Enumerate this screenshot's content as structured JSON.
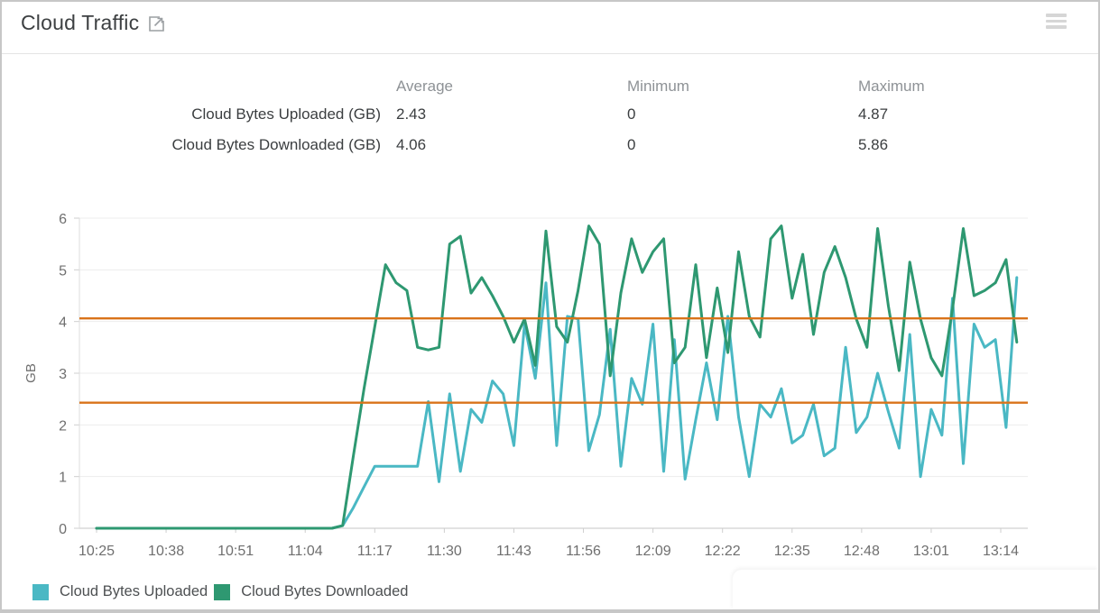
{
  "card": {
    "title": "Cloud Traffic"
  },
  "icons": {
    "title_icon": "external-link",
    "menu_icon": "hamburger-menu"
  },
  "stats_table": {
    "columns": [
      "Average",
      "Minimum",
      "Maximum"
    ],
    "rows": [
      {
        "label": "Cloud Bytes Uploaded (GB)",
        "average": "2.43",
        "minimum": "0",
        "maximum": "4.87"
      },
      {
        "label": "Cloud Bytes Downloaded (GB)",
        "average": "4.06",
        "minimum": "0",
        "maximum": "5.86"
      }
    ]
  },
  "legend": [
    {
      "label": "Cloud Bytes Uploaded",
      "color": "#4ab8c4"
    },
    {
      "label": "Cloud Bytes Downloaded",
      "color": "#2e9871"
    }
  ],
  "chart_data": {
    "type": "line",
    "title": "",
    "xlabel": "",
    "ylabel": "GB",
    "ylim": [
      0,
      6
    ],
    "grid": true,
    "legend_position": "bottom-left",
    "y_ticks": [
      0,
      1,
      2,
      3,
      4,
      5,
      6
    ],
    "x_tick_minutes": [
      0,
      13,
      26,
      39,
      52,
      65,
      78,
      91,
      104,
      117,
      130,
      143,
      156,
      169
    ],
    "x_tick_labels": [
      "10:25",
      "10:38",
      "10:51",
      "11:04",
      "11:17",
      "11:30",
      "11:43",
      "11:56",
      "12:09",
      "12:22",
      "12:35",
      "12:48",
      "13:01",
      "13:14"
    ],
    "x_minutes": [
      0,
      2,
      4,
      6,
      8,
      10,
      12,
      14,
      16,
      18,
      20,
      22,
      24,
      26,
      28,
      30,
      32,
      34,
      36,
      38,
      40,
      42,
      44,
      46,
      48,
      50,
      52,
      54,
      56,
      58,
      60,
      62,
      64,
      66,
      68,
      70,
      72,
      74,
      76,
      78,
      80,
      82,
      84,
      86,
      88,
      90,
      92,
      94,
      96,
      98,
      100,
      102,
      104,
      106,
      108,
      110,
      112,
      114,
      116,
      118,
      120,
      122,
      124,
      126,
      128,
      130,
      132,
      134,
      136,
      138,
      140,
      142,
      144,
      146,
      148,
      150,
      152,
      154,
      156,
      158,
      160,
      162,
      164,
      166,
      168,
      170,
      172
    ],
    "series": [
      {
        "name": "Cloud Bytes Uploaded",
        "color": "#4ab8c4",
        "values": [
          0,
          0,
          0,
          0,
          0,
          0,
          0,
          0,
          0,
          0,
          0,
          0,
          0,
          0,
          0,
          0,
          0,
          0,
          0,
          0,
          0,
          0,
          0,
          0.05,
          0.4,
          0.8,
          1.2,
          1.2,
          1.2,
          1.2,
          1.2,
          2.45,
          0.9,
          2.6,
          1.1,
          2.3,
          2.05,
          2.85,
          2.6,
          1.6,
          3.95,
          2.9,
          4.75,
          1.6,
          4.1,
          4.05,
          1.5,
          2.2,
          3.85,
          1.2,
          2.9,
          2.4,
          3.95,
          1.1,
          3.65,
          0.95,
          2.1,
          3.2,
          2.1,
          4.1,
          2.15,
          1.0,
          2.4,
          2.15,
          2.7,
          1.65,
          1.8,
          2.4,
          1.4,
          1.55,
          3.5,
          1.85,
          2.15,
          3.0,
          2.25,
          1.55,
          3.75,
          1.0,
          2.3,
          1.8,
          4.45,
          1.25,
          3.95,
          3.5,
          3.65,
          1.95,
          4.85
        ]
      },
      {
        "name": "Cloud Bytes Downloaded",
        "color": "#2e9871",
        "values": [
          0,
          0,
          0,
          0,
          0,
          0,
          0,
          0,
          0,
          0,
          0,
          0,
          0,
          0,
          0,
          0,
          0,
          0,
          0,
          0,
          0,
          0,
          0,
          0.05,
          1.4,
          2.7,
          3.9,
          5.1,
          4.75,
          4.6,
          3.5,
          3.45,
          3.5,
          5.5,
          5.65,
          4.55,
          4.85,
          4.5,
          4.1,
          3.6,
          4.05,
          3.15,
          5.75,
          3.9,
          3.6,
          4.6,
          5.85,
          5.5,
          2.95,
          4.55,
          5.6,
          4.95,
          5.35,
          5.6,
          3.2,
          3.5,
          5.1,
          3.3,
          4.65,
          3.4,
          5.35,
          4.1,
          3.7,
          5.6,
          5.85,
          4.45,
          5.3,
          3.75,
          4.95,
          5.45,
          4.85,
          4.05,
          3.5,
          5.8,
          4.3,
          3.05,
          5.15,
          4.05,
          3.3,
          2.95,
          4.25,
          5.8,
          4.5,
          4.6,
          4.75,
          5.2,
          3.6
        ]
      }
    ],
    "average_lines": [
      {
        "series": "Cloud Bytes Uploaded",
        "value": 2.43,
        "color": "#d9731a"
      },
      {
        "series": "Cloud Bytes Downloaded",
        "value": 4.06,
        "color": "#d9731a"
      }
    ]
  },
  "ui_colors": {
    "uploaded_line": "#4ab8c4",
    "downloaded_line": "#2e9871",
    "average_line": "#d9731a",
    "grid_line": "#ededed"
  }
}
